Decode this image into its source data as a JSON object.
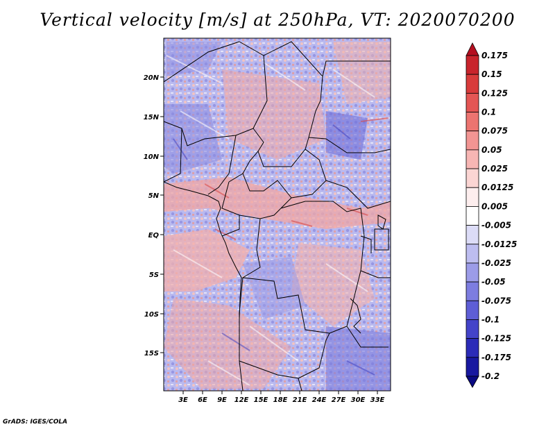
{
  "title": "Vertical velocity [m/s] at 250hPa, VT: 2020070200",
  "credit": "GrADS: IGES/COLA",
  "map": {
    "lat_labels": [
      "20N",
      "15N",
      "10N",
      "5N",
      "EQ",
      "5S",
      "10S",
      "15S"
    ],
    "lon_labels": [
      "3E",
      "6E",
      "9E",
      "12E",
      "15E",
      "18E",
      "21E",
      "24E",
      "27E",
      "30E",
      "33E"
    ]
  },
  "colorbar": {
    "levels": [
      "0.175",
      "0.15",
      "0.125",
      "0.1",
      "0.075",
      "0.05",
      "0.025",
      "0.0125",
      "0.005",
      "-0.005",
      "-0.0125",
      "-0.025",
      "-0.05",
      "-0.075",
      "-0.1",
      "-0.125",
      "-0.175",
      "-0.2"
    ],
    "colors": [
      "#b40f20",
      "#c8242c",
      "#d83b3b",
      "#e45654",
      "#ec7470",
      "#f29593",
      "#f7b6b4",
      "#fbd5d3",
      "#fdeeee",
      "#ffffff",
      "#dcdcf7",
      "#bdbdf0",
      "#9c9ce8",
      "#7d7de0",
      "#5e5ed6",
      "#4343c9",
      "#2b2bb8",
      "#1818a0",
      "#0a0a82"
    ]
  }
}
